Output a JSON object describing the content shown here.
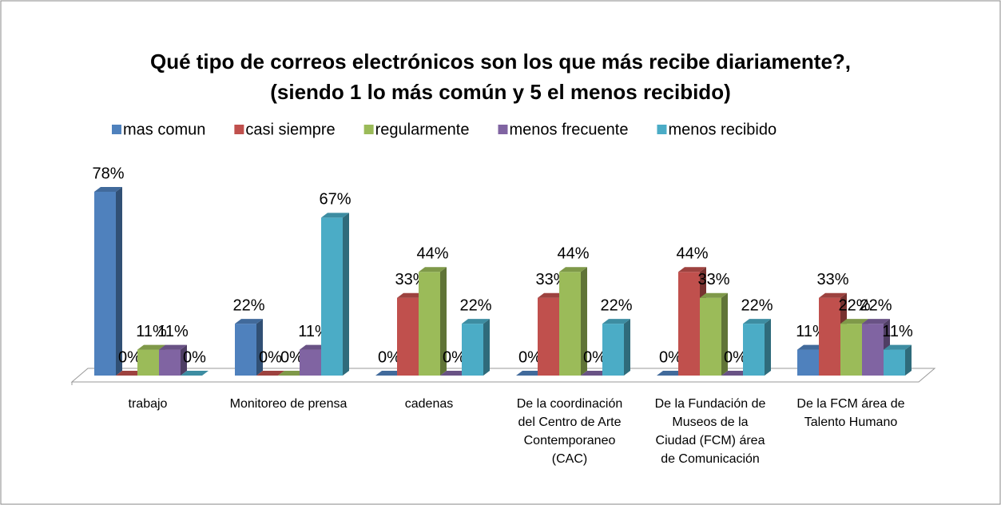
{
  "chart_data": {
    "type": "bar3d",
    "title": "Qué tipo de correos electrónicos son los que más recibe diariamente?, (siendo 1 lo más común y 5 el menos recibido)",
    "categories": [
      "trabajo",
      "Monitoreo de prensa",
      "cadenas",
      "De la coordinación del Centro de Arte Contemporaneo (CAC)",
      "De la Fundación de Museos de la Ciudad (FCM) área de Comunicación",
      "De la FCM área de Talento Humano"
    ],
    "legend": "top",
    "series": [
      {
        "name": "mas comun",
        "color": "#4f81bd",
        "values": [
          78,
          22,
          0,
          0,
          0,
          11
        ],
        "value_labels": [
          "78%",
          "22%",
          "0%",
          "0%",
          "0%",
          "11%"
        ]
      },
      {
        "name": "casi siempre",
        "color": "#c0504d",
        "values": [
          0,
          0,
          33,
          33,
          44,
          33
        ],
        "value_labels": [
          "0%",
          "0%",
          "33%",
          "33%",
          "44%",
          "33%"
        ]
      },
      {
        "name": "regularmente",
        "color": "#9bbb59",
        "values": [
          11,
          0,
          44,
          44,
          33,
          22
        ],
        "value_labels": [
          "11%",
          "0%",
          "44%",
          "44%",
          "33%",
          "22%"
        ]
      },
      {
        "name": "menos frecuente",
        "color": "#8064a2",
        "values": [
          11,
          11,
          0,
          0,
          0,
          22
        ],
        "value_labels": [
          "11%",
          "11%",
          "0%",
          "0%",
          "0%",
          "22%"
        ]
      },
      {
        "name": "menos recibido",
        "color": "#4bacc6",
        "values": [
          0,
          67,
          22,
          22,
          22,
          11
        ],
        "value_labels": [
          "0%",
          "67%",
          "22%",
          "22%",
          "22%",
          "11%"
        ]
      }
    ]
  }
}
